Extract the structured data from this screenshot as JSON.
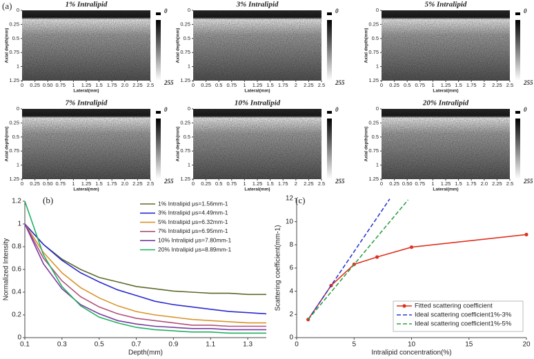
{
  "chart_data": [
    {
      "type": "image",
      "panel_label": "(a)",
      "title": "1% Intralipid",
      "xlabel": "Lateral(mm)",
      "ylabel": "Axial depth(mm)",
      "xlim": [
        0,
        2.5
      ],
      "xticks": [
        0,
        0.25,
        {
          "value": 0.5,
          "label": "0.50"
        },
        0.75,
        1,
        1.25,
        1.5,
        1.75,
        {
          "value": 2,
          "label": "2.0"
        },
        2.25,
        2.5
      ],
      "ylim": [
        1.25,
        0
      ],
      "yticks": [
        0,
        0.25,
        0.5,
        0.75,
        1,
        1.25
      ],
      "colorbar_ticks": [
        0,
        255
      ]
    },
    {
      "type": "image",
      "title": "3% Intralipid",
      "xlabel": "Lateral(mm)",
      "ylabel": "Axial depth(mm)",
      "xlim": [
        0,
        2.5
      ],
      "xticks": [
        0,
        0.25,
        0.5,
        0.75,
        1,
        1.25,
        1.5,
        1.75,
        2,
        2.25,
        2.5
      ],
      "ylim": [
        1.25,
        0
      ],
      "yticks": [
        0,
        0.25,
        0.5,
        0.75,
        1,
        1.25
      ],
      "colorbar_ticks": [
        0,
        255
      ]
    },
    {
      "type": "image",
      "title": "5% Intralipid",
      "xlabel": "Lateral(mm)",
      "ylabel": "Axial depth(mm)",
      "xlim": [
        0,
        2.5
      ],
      "xticks": [
        0,
        0.25,
        0.5,
        0.75,
        1,
        1.25,
        1.5,
        1.75,
        2,
        2.25,
        2.5
      ],
      "ylim": [
        1.25,
        0
      ],
      "yticks": [
        0,
        0.25,
        0.5,
        0.75,
        1,
        1.25
      ],
      "colorbar_ticks": [
        0,
        255
      ]
    },
    {
      "type": "image",
      "title": "7% Intralipid",
      "xlabel": "Lateral(mm)",
      "ylabel": "Axial depth(mm)",
      "xlim": [
        0,
        2.5
      ],
      "xticks": [
        0,
        0.25,
        {
          "value": 0.5,
          "label": "0.50"
        },
        0.75,
        1,
        1.25,
        1.5,
        1.75,
        {
          "value": 2,
          "label": "2.0"
        },
        2.25,
        2.5
      ],
      "ylim": [
        1.25,
        0
      ],
      "yticks": [
        0,
        0.25,
        0.5,
        0.75,
        1,
        1.25
      ],
      "colorbar_ticks": [
        0,
        255
      ]
    },
    {
      "type": "image",
      "title": "10% Intralipid",
      "xlabel": "Lateral(mm)",
      "ylabel": "Axial depth(mm)",
      "xlim": [
        0,
        2.5
      ],
      "xticks": [
        0,
        0.25,
        0.5,
        0.75,
        1,
        1.25,
        1.5,
        1.75,
        2,
        2.25,
        2.5
      ],
      "ylim": [
        1.25,
        0
      ],
      "yticks": [
        0,
        0.25,
        0.5,
        0.75,
        1,
        1.25
      ],
      "colorbar_ticks": [
        0,
        255
      ]
    },
    {
      "type": "image",
      "title": "20% Intralipid",
      "xlabel": "Lateral(mm)",
      "ylabel": "Axial depth(mm)",
      "xlim": [
        0,
        2.5
      ],
      "xticks": [
        0,
        0.25,
        {
          "value": 0.5,
          "label": "0.50"
        },
        0.75,
        1,
        1.25,
        1.5,
        1.75,
        {
          "value": 2,
          "label": "2.0"
        },
        2.25,
        2.5
      ],
      "ylim": [
        1.25,
        0
      ],
      "yticks": [
        0,
        0.25,
        0.5,
        0.75,
        1,
        1.25
      ],
      "colorbar_ticks": [
        0,
        255
      ]
    },
    {
      "type": "line",
      "panel_label": "(b)",
      "xlabel": "Depth(mm)",
      "ylabel": "Normalized Intensity",
      "xlim": [
        0.1,
        1.4
      ],
      "xticks": [
        0.1,
        0.3,
        0.5,
        0.7,
        0.9,
        1.1,
        1.3
      ],
      "ylim": [
        0,
        1.2
      ],
      "yticks": [
        0,
        0.2,
        0.4,
        0.6,
        0.8,
        1,
        1.2
      ],
      "legend": "upper right",
      "x": [
        0.1,
        0.2,
        0.3,
        0.4,
        0.5,
        0.6,
        0.7,
        0.8,
        0.9,
        1.0,
        1.1,
        1.2,
        1.3,
        1.4
      ],
      "series": [
        {
          "name": "1% Intralipid μs=1.56mm-1",
          "color": "#5b6b2a",
          "values": [
            1.0,
            0.82,
            0.69,
            0.6,
            0.53,
            0.49,
            0.45,
            0.43,
            0.41,
            0.4,
            0.39,
            0.39,
            0.38,
            0.38
          ]
        },
        {
          "name": "3% Intralipid μs=4.49mm-1",
          "color": "#2a2ad0",
          "values": [
            1.0,
            0.82,
            0.68,
            0.57,
            0.49,
            0.42,
            0.37,
            0.32,
            0.29,
            0.27,
            0.25,
            0.23,
            0.22,
            0.21
          ]
        },
        {
          "name": "5% Intralipid μs=6.32mm-1",
          "color": "#d9932a",
          "values": [
            1.0,
            0.75,
            0.57,
            0.44,
            0.35,
            0.28,
            0.23,
            0.2,
            0.18,
            0.16,
            0.15,
            0.14,
            0.13,
            0.13
          ]
        },
        {
          "name": "7% Intralipid μs=6.95mm-1",
          "color": "#b0507a",
          "values": [
            1.0,
            0.7,
            0.5,
            0.36,
            0.27,
            0.21,
            0.17,
            0.15,
            0.13,
            0.11,
            0.11,
            0.1,
            0.1,
            0.1
          ]
        },
        {
          "name": "10% Intralipid μs=7.80mm-1",
          "color": "#7a3aa0",
          "values": [
            1.0,
            0.65,
            0.43,
            0.29,
            0.21,
            0.15,
            0.12,
            0.1,
            0.09,
            0.08,
            0.08,
            0.07,
            0.07,
            0.07
          ]
        },
        {
          "name": "20% Intralipid μs=8.89mm-1",
          "color": "#20b060",
          "values": [
            1.2,
            0.73,
            0.45,
            0.28,
            0.18,
            0.13,
            0.09,
            0.07,
            0.06,
            0.05,
            0.05,
            0.04,
            0.04,
            0.04
          ]
        }
      ]
    },
    {
      "type": "line",
      "panel_label": "(c)",
      "xlabel": "Intralipid concentration(%)",
      "ylabel": "Scattering coefficient(mm-1)",
      "xlim": [
        0,
        20
      ],
      "xticks": [
        0,
        5,
        10,
        15,
        20
      ],
      "ylim": [
        0,
        12
      ],
      "yticks": [
        0,
        2,
        4,
        6,
        8,
        10,
        12
      ],
      "legend": "lower right",
      "series": [
        {
          "name": "Fitted scattering coefficient",
          "color": "#e0301e",
          "marker": "circle",
          "x": [
            1,
            3,
            5,
            7,
            10,
            20
          ],
          "values": [
            1.56,
            4.49,
            6.32,
            6.95,
            7.8,
            8.89
          ]
        },
        {
          "name": "Ideal scattering coefficient1%-3%",
          "color": "#2a3ad0",
          "dash": true,
          "x": [
            1,
            8.1
          ],
          "values": [
            1.56,
            11.96
          ]
        },
        {
          "name": "Ideal scattering coefficient1%-5%",
          "color": "#30a040",
          "dash": true,
          "x": [
            1,
            9.7
          ],
          "values": [
            1.56,
            11.88
          ]
        }
      ]
    }
  ]
}
